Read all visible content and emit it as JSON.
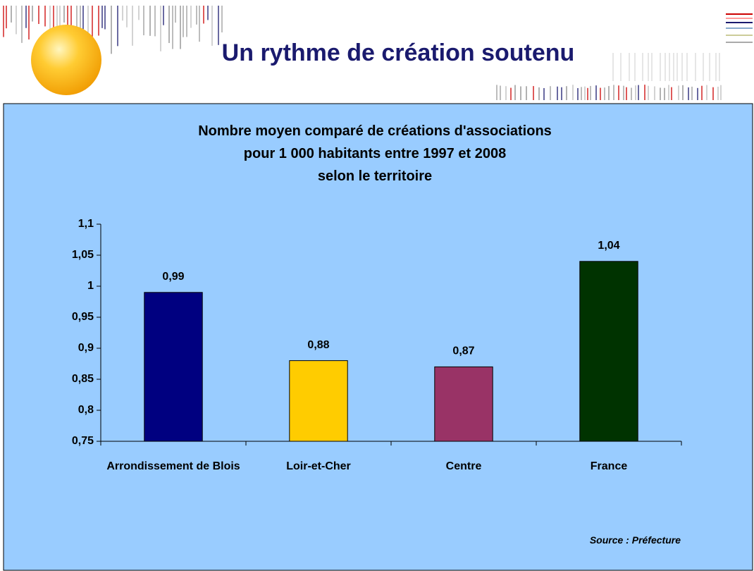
{
  "title": "Un rythme de création soutenu",
  "chart_data": {
    "type": "bar",
    "title": "Nombre moyen comparé de créations d'associations\npour 1 000 habitants entre 1997 et 2008\nselon le territoire",
    "categories": [
      "Arrondissement de Blois",
      "Loir-et-Cher",
      "Centre",
      "France"
    ],
    "values": [
      0.99,
      0.88,
      0.87,
      1.04
    ],
    "value_labels": [
      "0,99",
      "0,88",
      "0,87",
      "1,04"
    ],
    "colors": [
      "#000080",
      "#ffcc00",
      "#993366",
      "#003300"
    ],
    "ylim": [
      0.75,
      1.1
    ],
    "yticks": [
      {
        "value": 0.75,
        "label": "0,75"
      },
      {
        "value": 0.8,
        "label": "0,8"
      },
      {
        "value": 0.85,
        "label": "0,85"
      },
      {
        "value": 0.9,
        "label": "0,9"
      },
      {
        "value": 0.95,
        "label": "0,95"
      },
      1,
      {
        "value": 1.05,
        "label": "1,05"
      },
      {
        "value": 1.1,
        "label": "1,1"
      }
    ],
    "grid": false,
    "source": "Source : Préfecture"
  }
}
